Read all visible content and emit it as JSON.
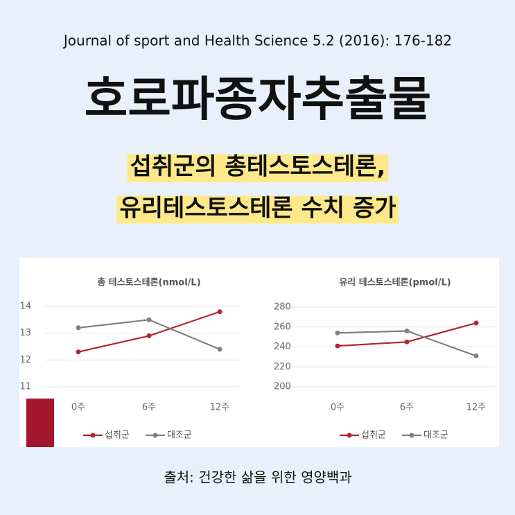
{
  "citation": "Journal of sport and Health Science 5.2 (2016): 176-182",
  "title": "호로파종자추출물",
  "subtitle": [
    "섭취군의 총테스토스테론,",
    "유리테스토스테론 수치 증가"
  ],
  "source": "출처: 건강한 삶을 위한 영양백과",
  "chart_data": [
    {
      "type": "line",
      "title": "총 테스토스테론(nmol/L)",
      "categories": [
        "0주",
        "6주",
        "12주"
      ],
      "ylim": [
        11,
        14
      ],
      "yticks": [
        11,
        12,
        13,
        14
      ],
      "grid": true,
      "series": [
        {
          "name": "섭취군",
          "color": "#b3262e",
          "values": [
            12.3,
            12.9,
            13.8
          ]
        },
        {
          "name": "대조군",
          "color": "#808080",
          "values": [
            13.2,
            13.5,
            12.4
          ]
        }
      ]
    },
    {
      "type": "line",
      "title": "유리 테스토스테론(pmol/L)",
      "categories": [
        "0주",
        "6주",
        "12주"
      ],
      "ylim": [
        200,
        280
      ],
      "yticks": [
        200,
        220,
        240,
        260,
        280
      ],
      "grid": true,
      "series": [
        {
          "name": "섭취군",
          "color": "#b3262e",
          "values": [
            241,
            245,
            264
          ]
        },
        {
          "name": "대조군",
          "color": "#808080",
          "values": [
            254,
            256,
            231
          ]
        }
      ]
    }
  ]
}
